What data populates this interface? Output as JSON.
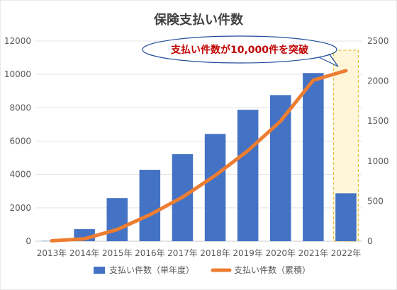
{
  "chart_data": {
    "type": "bar",
    "title": "保険支払い件数",
    "categories": [
      "2013年",
      "2014年",
      "2015年",
      "2016年",
      "2017年",
      "2018年",
      "2019年",
      "2020年",
      "2021年",
      "2022年"
    ],
    "series": [
      {
        "name": "支払い件数（単年度）",
        "type": "bar",
        "axis": "left",
        "color": "#4472C4",
        "values": [
          20,
          720,
          2580,
          4280,
          5220,
          6430,
          7880,
          8760,
          10080,
          2870
        ]
      },
      {
        "name": "支払い件数（累積）",
        "type": "line",
        "axis": "right",
        "color": "#ED7D31",
        "values": [
          5,
          30,
          145,
          330,
          550,
          820,
          1130,
          1500,
          2010,
          2130
        ]
      }
    ],
    "left_axis": {
      "min": 0,
      "max": 12000,
      "ticks": [
        "0",
        "2000",
        "4000",
        "6000",
        "8000",
        "10000",
        "12000"
      ]
    },
    "right_axis": {
      "min": 0,
      "max": 2500,
      "ticks": [
        "0",
        "500",
        "1000",
        "1500",
        "2000",
        "2500"
      ]
    },
    "grid": true,
    "legend": "bottom",
    "annotation": {
      "text": "支払い件数が10,000件を突破",
      "color": "#C00000",
      "target_category": "2022年"
    },
    "highlight": {
      "category": "2022年",
      "fill": "#FFF6DA",
      "border": "#E8BE3A"
    }
  }
}
